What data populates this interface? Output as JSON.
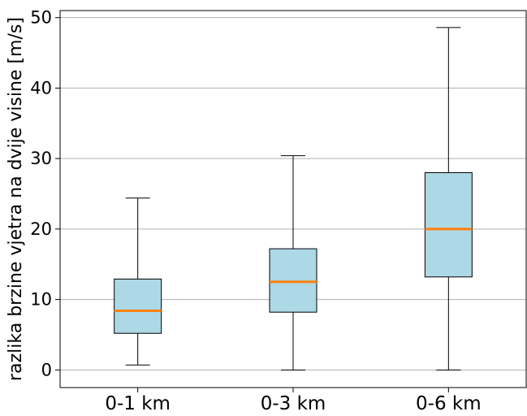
{
  "chart_data": {
    "type": "box",
    "title": "",
    "xlabel": "",
    "ylabel": "razlika brzine vjetra na dvije visine [m/s]",
    "ylim": [
      -2.5,
      51
    ],
    "yticks": [
      0,
      10,
      20,
      30,
      40,
      50
    ],
    "grid": "horizontal",
    "colors": {
      "box_fill": "#add8e6",
      "median": "#ff7f0e",
      "grid": "#b0b0b0",
      "line": "#000000"
    },
    "categories": [
      "0-1 km",
      "0-3 km",
      "0-6 km"
    ],
    "boxes": [
      {
        "label": "0-1 km",
        "whisker_low": 0.7,
        "q1": 5.2,
        "median": 8.4,
        "q3": 12.9,
        "whisker_high": 24.4
      },
      {
        "label": "0-3 km",
        "whisker_low": 0.0,
        "q1": 8.2,
        "median": 12.5,
        "q3": 17.2,
        "whisker_high": 30.4
      },
      {
        "label": "0-6 km",
        "whisker_low": 0.0,
        "q1": 13.2,
        "median": 20.0,
        "q3": 28.0,
        "whisker_high": 48.6
      }
    ]
  }
}
